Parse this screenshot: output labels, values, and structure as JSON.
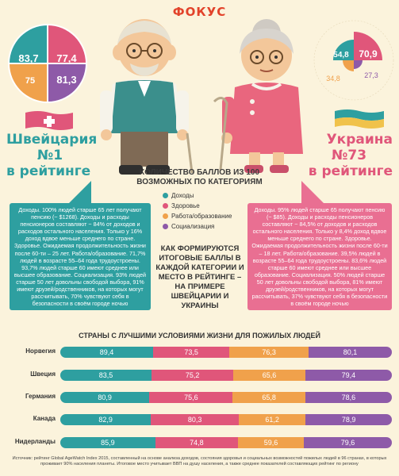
{
  "logo": "ФОКУС",
  "switzerland": {
    "name": "Швейцария",
    "rank": "№1",
    "rank_suffix": "в рейтинге",
    "scores": [
      "83,7",
      "77,4",
      "75",
      "81,3"
    ]
  },
  "ukraine": {
    "name": "Украина",
    "rank": "№73",
    "rank_suffix": "в рейтинге",
    "scores": [
      "54,8",
      "70,9",
      "34,8",
      "27,3"
    ]
  },
  "center_title": "КОЛИЧЕСТВО БАЛЛОВ ИЗ 100 ВОЗМОЖНЫХ ПО КАТЕГОРИЯМ",
  "legend": [
    {
      "label": "Доходы",
      "color": "#2e9fa0"
    },
    {
      "label": "Здоровье",
      "color": "#e0567a"
    },
    {
      "label": "Работа/образование",
      "color": "#f0a14b"
    },
    {
      "label": "Социализация",
      "color": "#8e5aa8"
    }
  ],
  "panel_ch": "Доходы. 100% людей старше 65 лет получают пенсию (~ $1268). Доходы и расходы пенсионеров составляют ~ 84% от доходов и расходов остального населения. Только у 16% доход вдвое меньше среднего по стране. Здоровье. Ожидаемая продолжительность жизни после 60-ти – 25 лет. Работа/образование. 71,7% людей в возрасте 55–64 года трудоустроены. 93,7% людей старше 60 имеют среднее или высшее образование. Социализация. 93% людей старше 50 лет довольны свободой выбора, 91% имеют друзей/родственников, на которых могут рассчитывать, 70% чувствуют себя в безопасности в своём городе ночью",
  "panel_ua": "Доходы. 95% людей старше 65 получают пенсию (~ $85). Доходы и расходы пенсионеров составляют ~ 84,5% от доходов и расходов остального населения. Только у 8,4% доход вдвое меньше среднего по стране. Здоровье. Ожидаемая продолжительность жизни после 60-ти – 18 лет. Работа/образование. 39,5% людей в возрасте 55–64 года трудоустроены. 83,6% людей старше 60 имеют среднее или высшее образование. Социализация. 50% людей старше 50 лет довольны свободой выбора, 81% имеют друзей/родственников, на которых могут рассчитывать, 37% чувствуют себя в безопасности в своём городе ночью",
  "mid_text": "КАК ФОРМИРУЮТСЯ ИТОГОВЫЕ БАЛЛЫ В КАЖДОЙ КАТЕГОРИИ И МЕСТО В РЕЙТИНГЕ – НА ПРИМЕРЕ ШВЕЙЦАРИИ И УКРАИНЫ",
  "bars_title": "СТРАНЫ С ЛУЧШИМИ УСЛОВИЯМИ ЖИЗНИ ДЛЯ ПОЖИЛЫХ ЛЮДЕЙ",
  "chart_data": {
    "type": "bar",
    "categories": [
      "Норвегия",
      "Швеция",
      "Германия",
      "Канада",
      "Нидерланды"
    ],
    "series": [
      {
        "name": "Доходы",
        "values": [
          89.4,
          83.5,
          80.9,
          82.9,
          85.9
        ]
      },
      {
        "name": "Здоровье",
        "values": [
          73.5,
          75.2,
          75.6,
          80.3,
          74.8
        ]
      },
      {
        "name": "Работа/образование",
        "values": [
          76.3,
          65.6,
          65.8,
          61.2,
          59.6
        ]
      },
      {
        "name": "Социализация",
        "values": [
          80.1,
          79.4,
          78.6,
          78.9,
          79.6
        ]
      }
    ],
    "value_labels": [
      [
        "89,4",
        "73,5",
        "76,3",
        "80,1"
      ],
      [
        "83,5",
        "75,2",
        "65,6",
        "79,4"
      ],
      [
        "80,9",
        "75,6",
        "65,8",
        "78,6"
      ],
      [
        "82,9",
        "80,3",
        "61,2",
        "78,9"
      ],
      [
        "85,9",
        "74,8",
        "59,6",
        "79,6"
      ]
    ]
  },
  "source": "Источник: рейтинг Global AgeWatch Index 2015, составленный на основе анализа доходов, состояния здоровья и социальных возможностей пожилых людей в 96 странах, в которых проживает 90% населения планеты. Итоговое место учитывает ВВП на душу населения, а также среднее показателей составляющих рейтинг по региону"
}
